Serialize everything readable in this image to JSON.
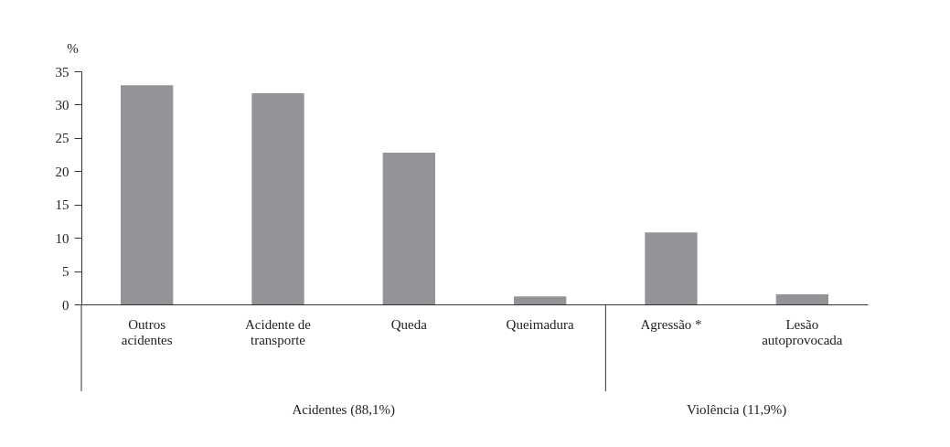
{
  "chart_data": {
    "type": "bar",
    "categories": [
      "Outros acidentes",
      "Acidente de transporte",
      "Queda",
      "Queimadura",
      "Agressão *",
      "Lesão autoprovocada"
    ],
    "values": [
      32.9,
      31.7,
      22.8,
      1.2,
      10.8,
      1.5
    ],
    "color": "#939497",
    "ylabel": "%",
    "ylim": [
      0,
      35
    ],
    "yticks": [
      0,
      5,
      10,
      15,
      20,
      25,
      30,
      35
    ],
    "annotations": [
      "Acidentes (88,1%)",
      "Violência (11,9%)"
    ],
    "grid": false
  }
}
